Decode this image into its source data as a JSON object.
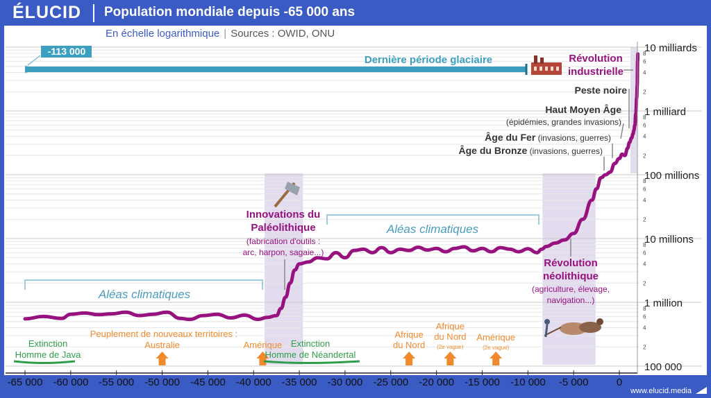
{
  "brand": "ÉLUCID",
  "title": "Population mondiale depuis -65 000 ans",
  "subtitle": "En échelle logarithmique",
  "sources": "Sources : OWID, ONU",
  "website": "www.elucid.media",
  "colors": {
    "brand_blue": "#3b5bc4",
    "series": "#97127f",
    "band": "#e3dcef",
    "glacial_bar": "#3d9fc0",
    "climate_text": "#4a9cbe",
    "event_label": "#97127f",
    "settlement": "#f08a2c",
    "extinction": "#2f9e4a",
    "grey_label": "#333333"
  },
  "chart_data": {
    "type": "line",
    "y_scale": "log",
    "xlim": [
      -65000,
      2500
    ],
    "ylim": [
      100000,
      10000000000
    ],
    "x_ticks": [
      -65000,
      -60000,
      -55000,
      -50000,
      -45000,
      -40000,
      -35000,
      -30000,
      -25000,
      -20000,
      -15000,
      -10000,
      -5000,
      0
    ],
    "x_tick_labels": [
      "-65 000",
      "-60 000",
      "-55 000",
      "-50 000",
      "-45 000",
      "-40 000",
      "-35 000",
      "-30 000",
      "-25 000",
      "-20 000",
      "-15 000",
      "-10 000",
      "-5 000",
      "0"
    ],
    "y_ticks": [
      100000,
      1000000,
      10000000,
      100000000,
      1000000000,
      10000000000
    ],
    "y_tick_labels": [
      "100 000",
      "1 million",
      "10 millions",
      "100 millions",
      "1 milliard",
      "10 milliards"
    ],
    "y_minor_tick_label_values": [
      2,
      4,
      6,
      8
    ],
    "series": [
      {
        "x": [
          -65000,
          -63000,
          -61000,
          -60000,
          -58500,
          -57000,
          -55500,
          -54000,
          -52500,
          -51000,
          -49500,
          -48000,
          -47000,
          -45500,
          -44000,
          -42500,
          -41000,
          -39500,
          -38500,
          -37500,
          -37000,
          -36500,
          -36000,
          -35500,
          -35000,
          -34000,
          -33000,
          -32000,
          -31000,
          -30000,
          -29000,
          -28000,
          -27000,
          -26000,
          -25000,
          -24000,
          -23000,
          -22000,
          -21000,
          -20000,
          -19000,
          -18000,
          -17000,
          -16000,
          -15000,
          -14000,
          -13000,
          -12000,
          -11000,
          -10000,
          -9000,
          -8500,
          -8000,
          -7000,
          -6000,
          -5000,
          -4000,
          -3000,
          -2500,
          -2000,
          -1500,
          -1000,
          -500,
          0,
          300,
          600,
          900,
          1100,
          1348,
          1500,
          1600,
          1700,
          1800,
          1900,
          1950,
          2000,
          2020
        ],
        "y": [
          550000,
          600000,
          560000,
          650000,
          680000,
          640000,
          660000,
          700000,
          620000,
          650000,
          700000,
          560000,
          540000,
          620000,
          650000,
          570000,
          630000,
          540000,
          580000,
          620000,
          800000,
          1200000,
          2000000,
          3200000,
          4000000,
          4300000,
          5000000,
          4800000,
          6000000,
          5000000,
          6500000,
          6800000,
          6000000,
          7200000,
          6000000,
          6800000,
          6500000,
          7300000,
          6600000,
          7000000,
          6200000,
          7000000,
          7400000,
          6400000,
          7000000,
          6200000,
          7200000,
          6800000,
          6200000,
          6900000,
          6000000,
          6800000,
          7500000,
          8500000,
          9500000,
          12000000,
          20000000,
          40000000,
          60000000,
          90000000,
          100000000,
          110000000,
          150000000,
          180000000,
          210000000,
          200000000,
          260000000,
          320000000,
          380000000,
          440000000,
          500000000,
          600000000,
          900000000,
          1600000000,
          2500000000,
          6100000000,
          7800000000
        ]
      }
    ],
    "annotations": {
      "glacial_start": "-113 000",
      "glacial_period": "Dernière période glaciaire",
      "climate_1": "Aléas climatiques",
      "climate_2": "Aléas climatiques",
      "industrial": [
        "Révolution",
        "industrielle"
      ],
      "black_death": "Peste noire",
      "middle_ages_title": "Haut Moyen Âge",
      "middle_ages_note": "(épidémies, grandes invasions)",
      "iron_title": "Âge du Fer",
      "iron_note": " (invasions, guerres)",
      "bronze_title": "Âge du Bronze",
      "bronze_note": " (invasions, guerres)",
      "paleo_title": [
        "Innovations du",
        "Paléolithique"
      ],
      "paleo_note": [
        "(fabrication d'outils :",
        "arc, harpon, sagaie...)"
      ],
      "neolithic_title": [
        "Révolution",
        "néolithique"
      ],
      "neolithic_note": [
        "(agriculture, élevage,",
        "navigation...)"
      ],
      "settlement_header": "Peuplement de nouveaux territoires :",
      "settlements": [
        {
          "x": -50000,
          "lines": [
            "Australie"
          ]
        },
        {
          "x": -39000,
          "lines": [
            "Amérique"
          ]
        },
        {
          "x": -23000,
          "lines": [
            "Afrique",
            "du Nord"
          ]
        },
        {
          "x": -18500,
          "lines": [
            "Afrique",
            "du Nord"
          ],
          "note": "(2e vague)"
        },
        {
          "x": -13500,
          "lines": [
            "Amérique"
          ],
          "note": "(2e vague)"
        }
      ],
      "extinctions": [
        {
          "lines": [
            "Extinction",
            "Homme de Java"
          ]
        },
        {
          "lines": [
            "Extinction",
            "Homme de Néandertal"
          ]
        }
      ]
    }
  }
}
